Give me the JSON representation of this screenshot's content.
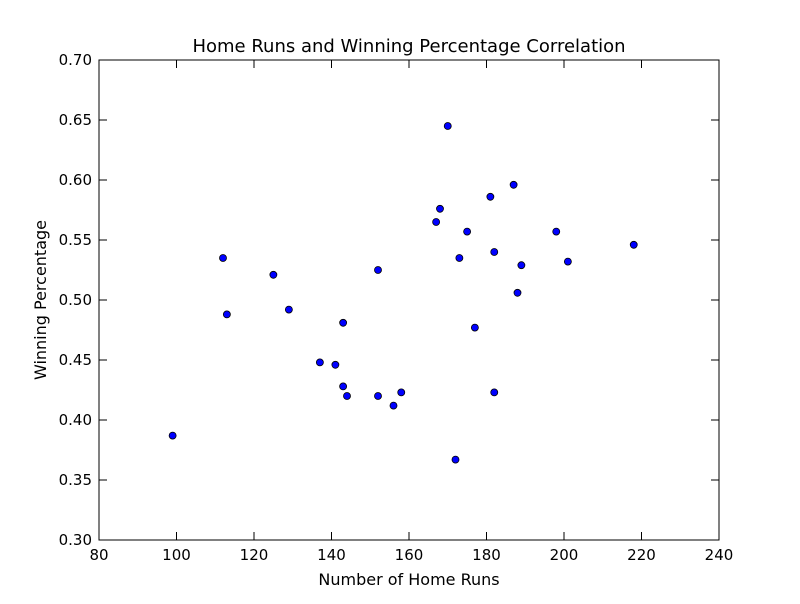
{
  "chart_data": {
    "type": "scatter",
    "title": "Home Runs and Winning Percentage Correlation",
    "xlabel": "Number of Home Runs",
    "ylabel": "Winning Percentage",
    "xlim": [
      80,
      240
    ],
    "ylim": [
      0.3,
      0.7
    ],
    "xticks": [
      "80",
      "100",
      "120",
      "140",
      "160",
      "180",
      "200",
      "220",
      "240"
    ],
    "yticks": [
      "0.30",
      "0.35",
      "0.40",
      "0.45",
      "0.50",
      "0.55",
      "0.60",
      "0.65",
      "0.70"
    ],
    "grid": false,
    "marker_color": "#0000ff",
    "marker_edge_color": "#000000",
    "points": [
      {
        "x": 99,
        "y": 0.387
      },
      {
        "x": 112,
        "y": 0.535
      },
      {
        "x": 113,
        "y": 0.488
      },
      {
        "x": 125,
        "y": 0.521
      },
      {
        "x": 129,
        "y": 0.492
      },
      {
        "x": 137,
        "y": 0.448
      },
      {
        "x": 141,
        "y": 0.446
      },
      {
        "x": 143,
        "y": 0.481
      },
      {
        "x": 143,
        "y": 0.428
      },
      {
        "x": 144,
        "y": 0.42
      },
      {
        "x": 152,
        "y": 0.525
      },
      {
        "x": 152,
        "y": 0.42
      },
      {
        "x": 156,
        "y": 0.412
      },
      {
        "x": 158,
        "y": 0.423
      },
      {
        "x": 167,
        "y": 0.565
      },
      {
        "x": 168,
        "y": 0.576
      },
      {
        "x": 170,
        "y": 0.645
      },
      {
        "x": 172,
        "y": 0.367
      },
      {
        "x": 173,
        "y": 0.535
      },
      {
        "x": 175,
        "y": 0.557
      },
      {
        "x": 177,
        "y": 0.477
      },
      {
        "x": 181,
        "y": 0.586
      },
      {
        "x": 182,
        "y": 0.54
      },
      {
        "x": 182,
        "y": 0.423
      },
      {
        "x": 187,
        "y": 0.596
      },
      {
        "x": 188,
        "y": 0.506
      },
      {
        "x": 189,
        "y": 0.529
      },
      {
        "x": 198,
        "y": 0.557
      },
      {
        "x": 201,
        "y": 0.532
      },
      {
        "x": 218,
        "y": 0.546
      }
    ]
  }
}
